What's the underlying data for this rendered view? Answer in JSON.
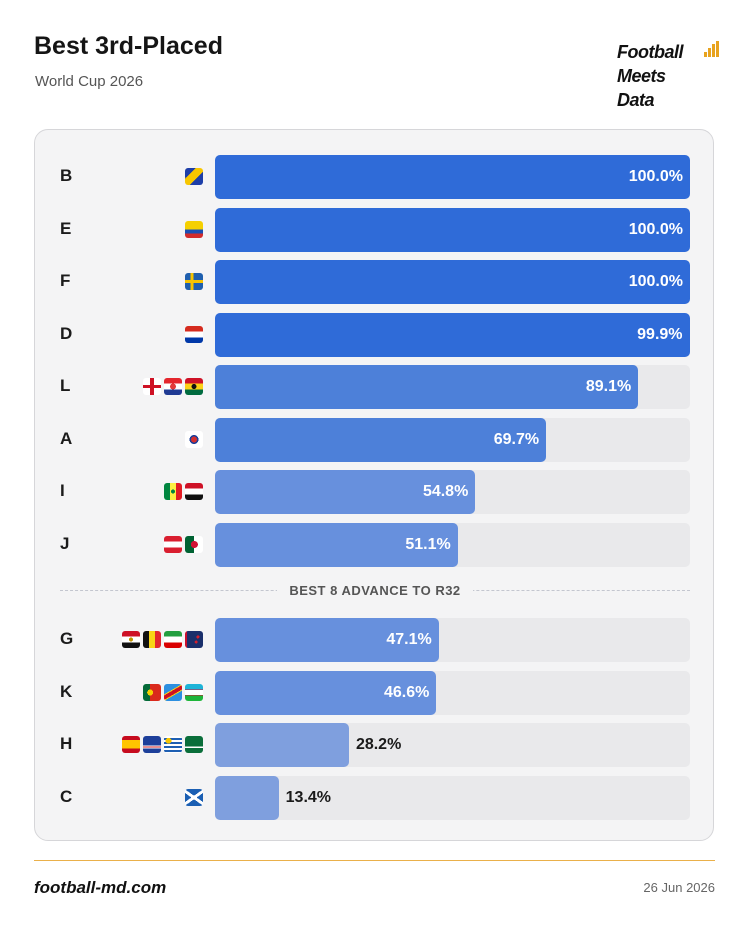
{
  "header": {
    "title": "Best 3rd-Placed",
    "subtitle": "World Cup 2026",
    "logo_lines": [
      "Football",
      "Meets",
      "Data"
    ],
    "logo_icon": "bar-chart-icon"
  },
  "separator": {
    "label": "BEST 8 ADVANCE TO R32",
    "after_rank": 8
  },
  "footer": {
    "site": "football-md.com",
    "date": "26 Jun 2026"
  },
  "colors": {
    "accent": "#eab04a",
    "bar_strong": "#2f6bd8",
    "bar_medium": "#4d80d9",
    "bar_soft": "#6790dd",
    "bar_faint": "#7f9fde",
    "track": "#e9e9eb"
  },
  "chart_data": {
    "type": "bar",
    "orientation": "horizontal",
    "unit": "%",
    "xlim": [
      0,
      100
    ],
    "categories": [
      "B",
      "E",
      "F",
      "D",
      "L",
      "A",
      "I",
      "J",
      "G",
      "K",
      "H",
      "C"
    ],
    "values": [
      100.0,
      100.0,
      100.0,
      99.9,
      89.1,
      69.7,
      54.8,
      51.1,
      47.1,
      46.6,
      28.2,
      13.4
    ],
    "labels": [
      "100.0%",
      "100.0%",
      "100.0%",
      "99.9%",
      "89.1%",
      "69.7%",
      "54.8%",
      "51.1%",
      "47.1%",
      "46.6%",
      "28.2%",
      "13.4%"
    ],
    "flags": [
      [
        "bosnia"
      ],
      [
        "ecuador"
      ],
      [
        "sweden"
      ],
      [
        "paraguay"
      ],
      [
        "england",
        "croatia",
        "ghana"
      ],
      [
        "south-korea"
      ],
      [
        "senegal",
        "iraq"
      ],
      [
        "austria",
        "algeria"
      ],
      [
        "egypt",
        "belgium",
        "iran",
        "new-zealand"
      ],
      [
        "portugal",
        "dr-congo",
        "uzbekistan"
      ],
      [
        "spain",
        "cape-verde",
        "uruguay",
        "saudi-arabia"
      ],
      [
        "scotland"
      ]
    ]
  }
}
